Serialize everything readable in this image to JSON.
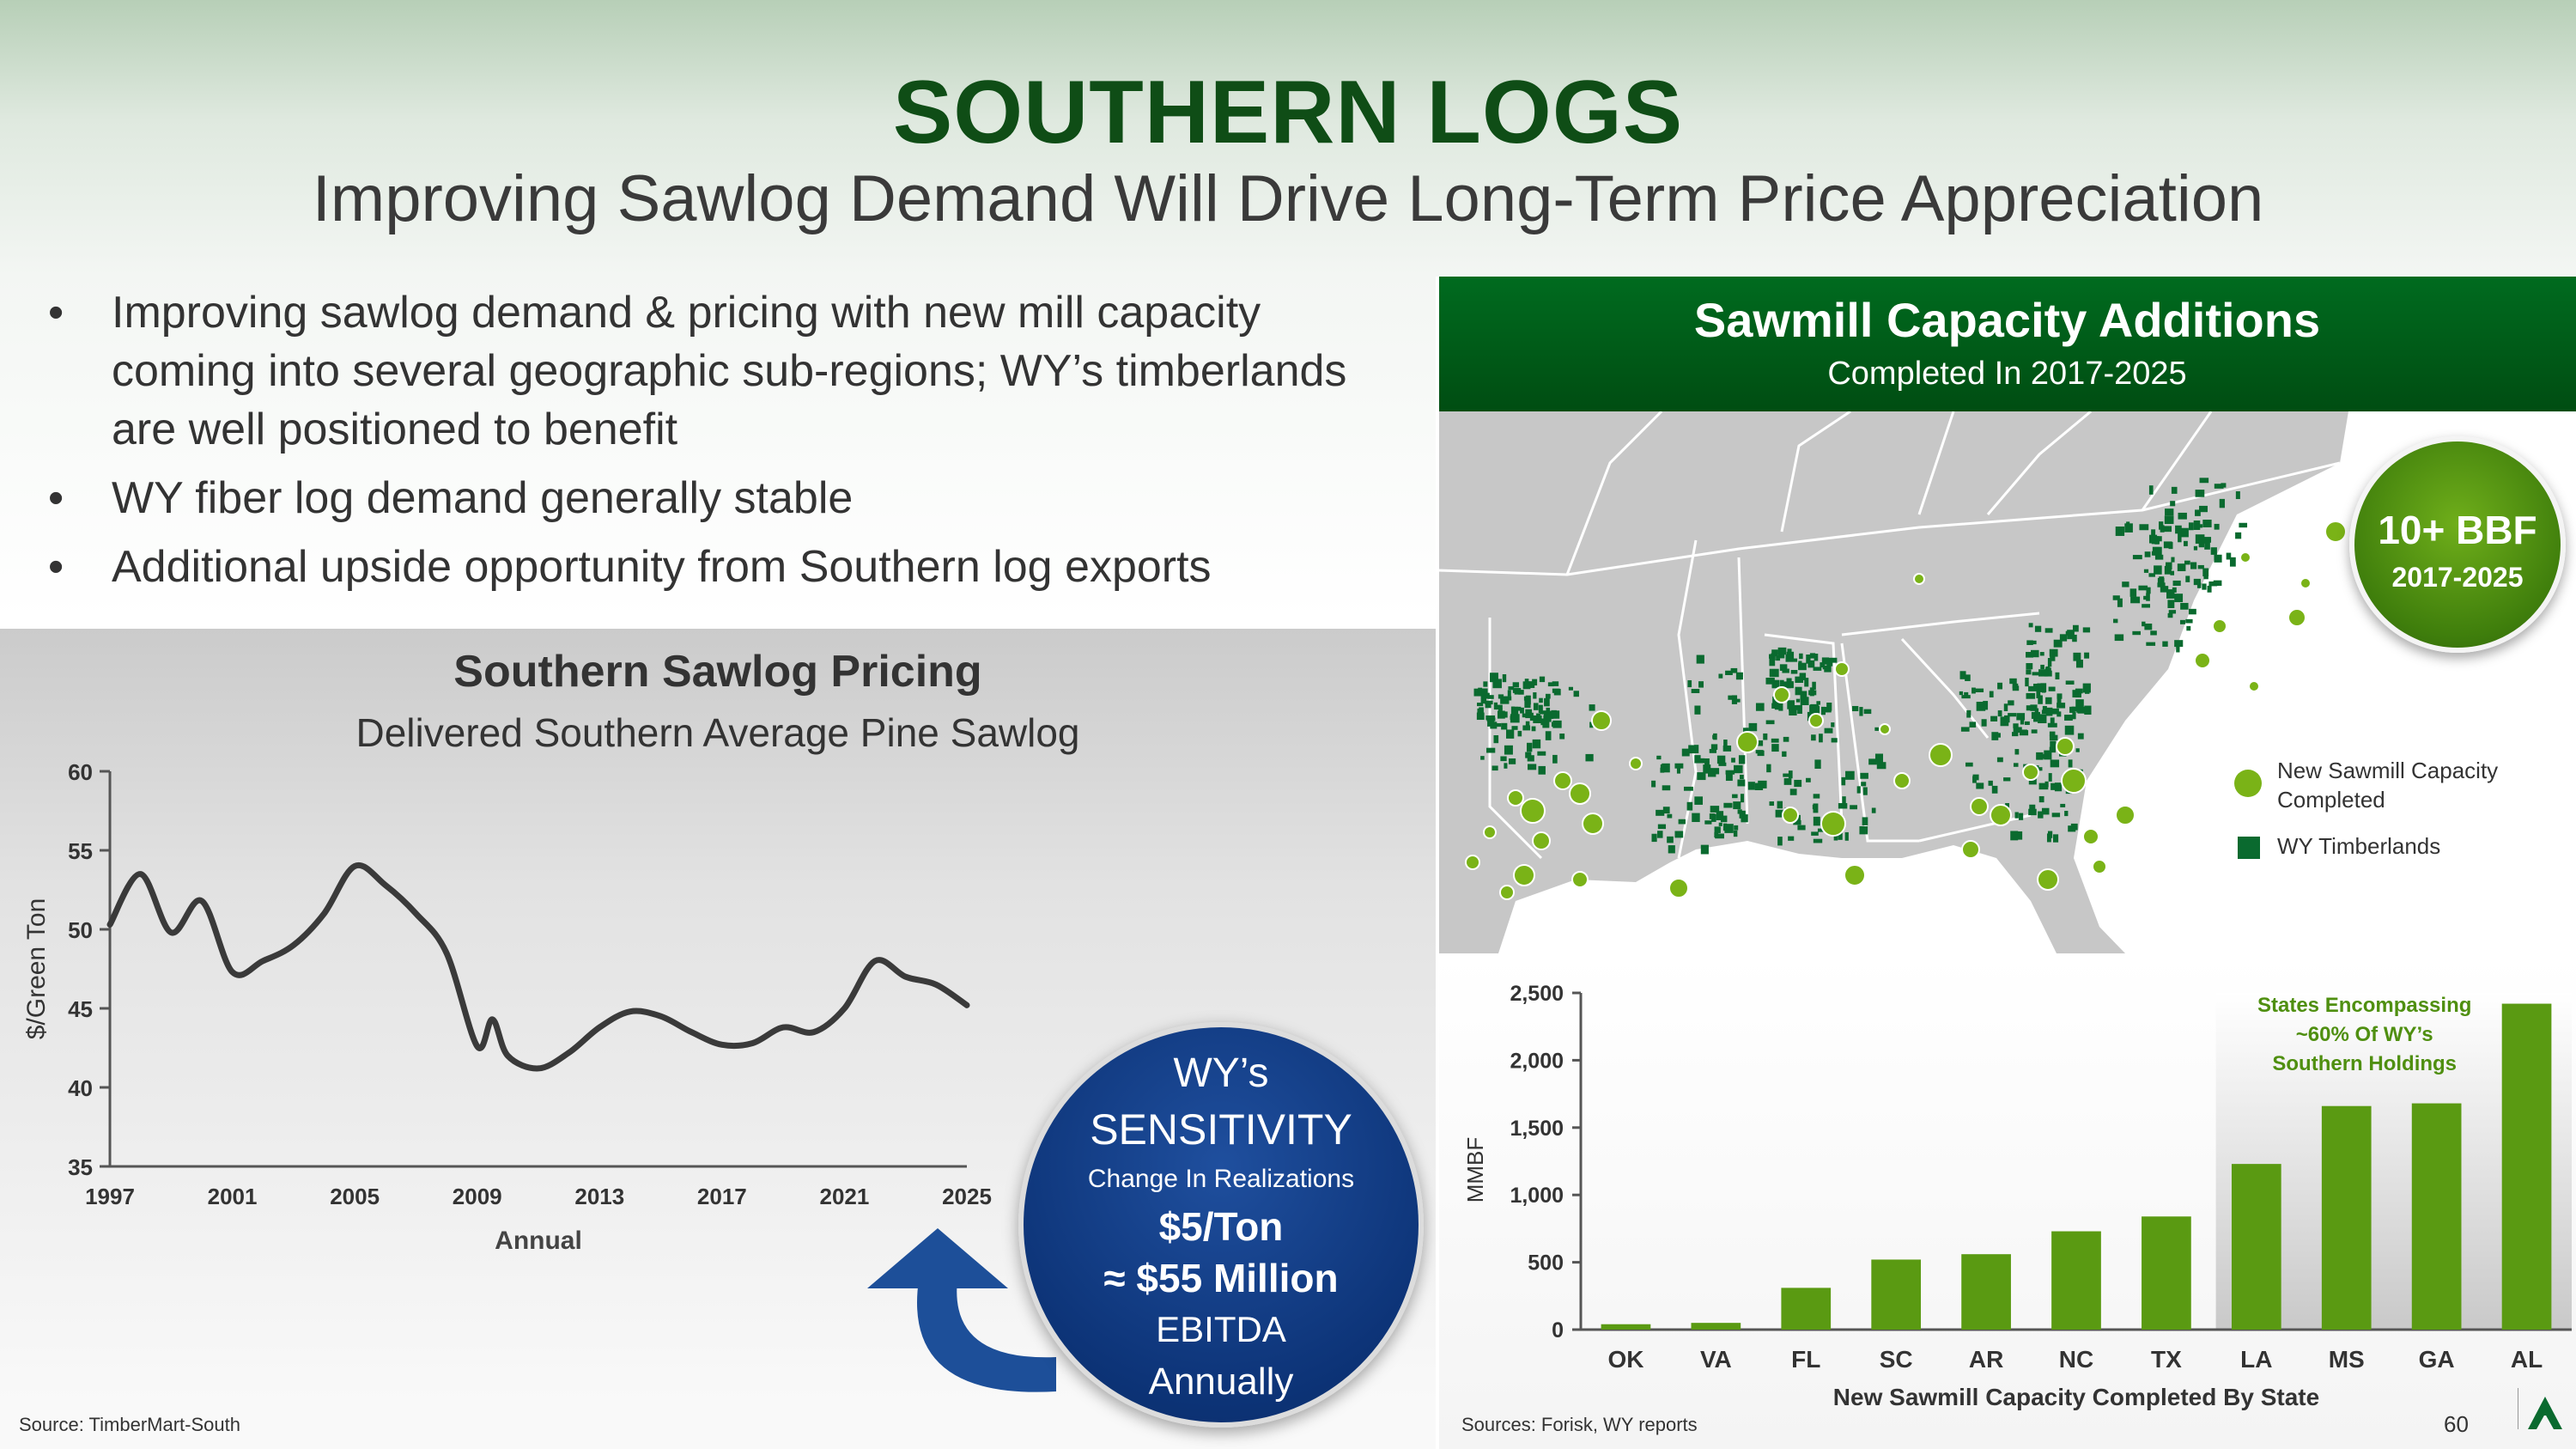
{
  "title": "SOUTHERN LOGS",
  "subtitle": "Improving Sawlog Demand Will Drive Long-Term Price Appreciation",
  "bullets": [
    "Improving sawlog demand & pricing with new mill capacity coming into several geographic sub-regions; WY’s timberlands are well positioned to benefit",
    "WY fiber log demand generally stable",
    "Additional upside opportunity from Southern log exports"
  ],
  "left_source": "Source: TimberMart-South",
  "right_source": "Sources: Forisk, WY reports",
  "page_number": "60",
  "sensitivity": {
    "line1": "WY’s",
    "line2": "SENSITIVITY",
    "line3": "Change In Realizations",
    "line4": "$5/Ton",
    "line5": "≈ $55 Million",
    "line6": "EBITDA",
    "line7": "Annually"
  },
  "map_panel": {
    "title": "Sawmill Capacity Additions",
    "subtitle": "Completed In 2017-2025",
    "callout_main": "10+ BBF",
    "callout_sub": "2017-2025",
    "legend": [
      "New Sawmill Capacity Completed",
      "WY Timberlands"
    ]
  },
  "colors": {
    "title_green": "#0f4d16",
    "bar_green": "#5a9a12",
    "timberland_green": "#0a6a2f",
    "mill_green": "#7ab317",
    "line_dark": "#3a3a3a",
    "sensitivity_blue": "#0d3478"
  },
  "chart_data": [
    {
      "type": "line",
      "title": "Southern Sawlog Pricing",
      "subtitle": "Delivered Southern Average Pine Sawlog",
      "xlabel": "Annual",
      "ylabel": "$/Green Ton",
      "xlim": [
        1997,
        2025
      ],
      "ylim": [
        35,
        60
      ],
      "xticks": [
        1997,
        2001,
        2005,
        2009,
        2013,
        2017,
        2021,
        2025
      ],
      "yticks": [
        35,
        40,
        45,
        50,
        55,
        60
      ],
      "series": [
        {
          "name": "Delivered Southern Average Pine Sawlog",
          "x": [
            1997,
            1998,
            1999,
            2000,
            2001,
            2002,
            2003,
            2004,
            2005,
            2006,
            2007,
            2008,
            2009,
            2009.5,
            2010,
            2011,
            2012,
            2013,
            2014,
            2015,
            2016,
            2017,
            2018,
            2019,
            2020,
            2021,
            2022,
            2023,
            2024,
            2025
          ],
          "y": [
            50.3,
            53.5,
            49.8,
            51.8,
            47.3,
            48.0,
            49.0,
            51.0,
            54.0,
            52.8,
            51.0,
            48.5,
            42.6,
            44.3,
            42.0,
            41.2,
            42.2,
            43.8,
            44.8,
            44.5,
            43.5,
            42.7,
            42.8,
            43.8,
            43.5,
            45.0,
            48.0,
            47.0,
            46.5,
            45.2
          ]
        }
      ]
    },
    {
      "type": "bar",
      "title": "",
      "xlabel": "New Sawmill Capacity Completed By State",
      "ylabel": "MMBF",
      "ylim": [
        0,
        2500
      ],
      "yticks": [
        0,
        500,
        1000,
        1500,
        2000,
        2500
      ],
      "categories": [
        "OK",
        "VA",
        "FL",
        "SC",
        "AR",
        "NC",
        "TX",
        "LA",
        "MS",
        "GA",
        "AL"
      ],
      "values": [
        40,
        50,
        310,
        520,
        560,
        730,
        840,
        1230,
        1660,
        1680,
        2420
      ],
      "annotation": "States Encompassing ~60% Of WY’s Southern Holdings",
      "highlight_categories": [
        "LA",
        "MS",
        "GA",
        "AL"
      ]
    }
  ]
}
